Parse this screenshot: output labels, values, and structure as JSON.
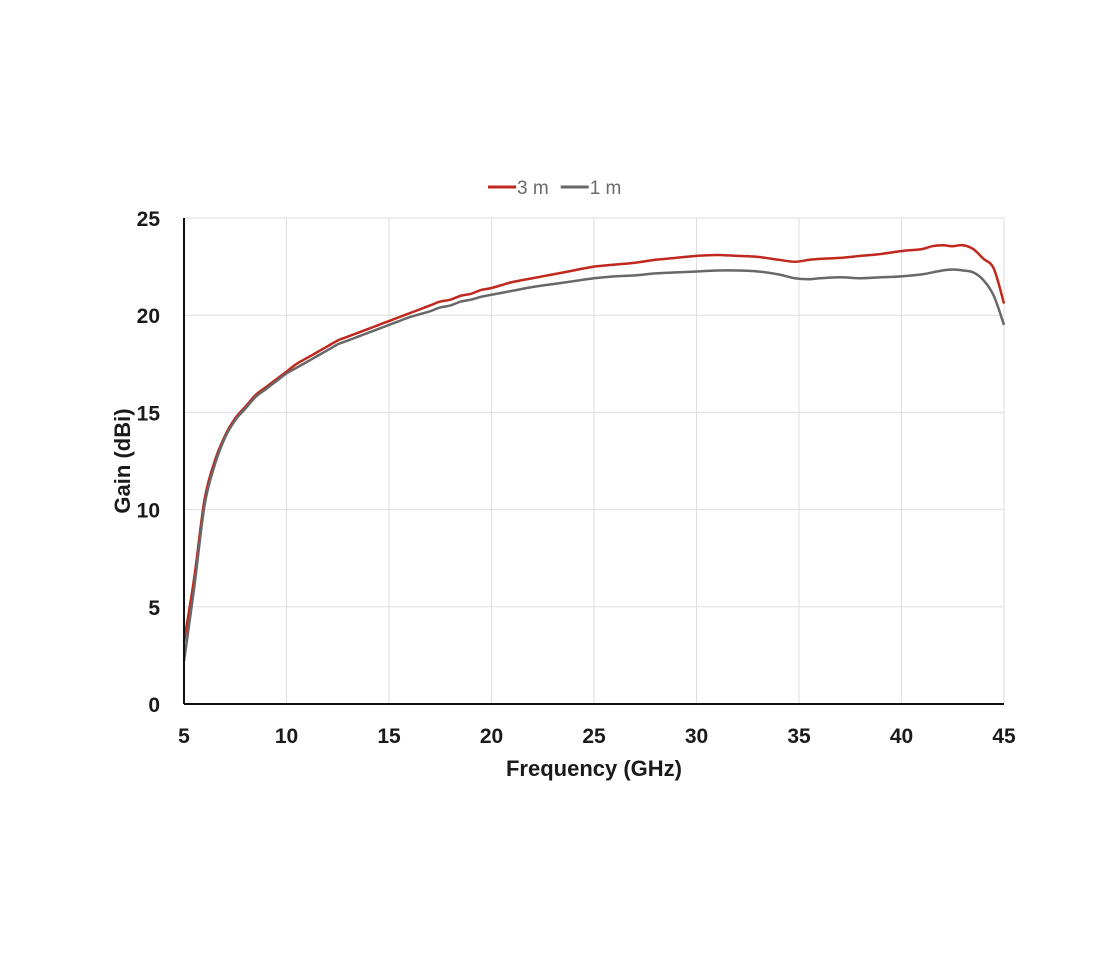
{
  "chart_data": {
    "type": "line",
    "xlabel": "Frequency  (GHz)",
    "ylabel": "Gain (dBi)",
    "xlim": [
      5,
      45
    ],
    "ylim": [
      0,
      25
    ],
    "x_ticks": [
      5,
      10,
      15,
      20,
      25,
      30,
      35,
      40,
      45
    ],
    "y_ticks": [
      0,
      5,
      10,
      15,
      20,
      25
    ],
    "grid": true,
    "legend_position": "top-center",
    "series": [
      {
        "name": "3 m",
        "color": "#c0281d",
        "x": [
          5,
          5.5,
          6,
          6.5,
          7,
          7.5,
          8,
          8.5,
          9,
          9.5,
          10,
          10.5,
          11,
          11.5,
          12,
          12.5,
          13,
          13.5,
          14,
          14.5,
          15,
          15.5,
          16,
          16.5,
          17,
          17.5,
          18,
          18.5,
          19,
          19.5,
          20,
          21,
          22,
          23,
          24,
          25,
          26,
          27,
          28,
          29,
          30,
          31,
          32,
          33,
          34,
          34.8,
          35.5,
          36,
          37,
          38,
          39,
          40,
          41,
          41.5,
          42,
          42.5,
          43,
          43.5,
          44,
          44.5,
          45
        ],
        "values": [
          3.2,
          6.5,
          10.5,
          12.5,
          13.8,
          14.7,
          15.3,
          15.9,
          16.3,
          16.7,
          17.1,
          17.5,
          17.8,
          18.1,
          18.4,
          18.7,
          18.9,
          19.1,
          19.3,
          19.5,
          19.7,
          19.9,
          20.1,
          20.3,
          20.5,
          20.7,
          20.8,
          21.0,
          21.1,
          21.3,
          21.4,
          21.7,
          21.9,
          22.1,
          22.3,
          22.5,
          22.6,
          22.7,
          22.85,
          22.95,
          23.05,
          23.1,
          23.05,
          23.0,
          22.85,
          22.75,
          22.85,
          22.9,
          22.95,
          23.05,
          23.15,
          23.3,
          23.4,
          23.55,
          23.6,
          23.55,
          23.6,
          23.4,
          22.9,
          22.4,
          20.6
        ]
      },
      {
        "name": "1 m",
        "color": "#686868",
        "x": [
          5,
          5.5,
          6,
          6.5,
          7,
          7.5,
          8,
          8.5,
          9,
          9.5,
          10,
          10.5,
          11,
          11.5,
          12,
          12.5,
          13,
          13.5,
          14,
          14.5,
          15,
          15.5,
          16,
          16.5,
          17,
          17.5,
          18,
          18.5,
          19,
          19.5,
          20,
          21,
          22,
          23,
          24,
          25,
          26,
          27,
          28,
          29,
          30,
          31,
          32,
          33,
          34,
          34.8,
          35.5,
          36,
          37,
          38,
          39,
          40,
          41,
          41.5,
          42,
          42.5,
          43,
          43.5,
          44,
          44.5,
          45
        ],
        "values": [
          2.2,
          6.0,
          10.2,
          12.3,
          13.7,
          14.6,
          15.2,
          15.8,
          16.2,
          16.6,
          17.0,
          17.3,
          17.6,
          17.9,
          18.2,
          18.5,
          18.7,
          18.9,
          19.1,
          19.3,
          19.5,
          19.7,
          19.9,
          20.05,
          20.2,
          20.4,
          20.5,
          20.7,
          20.8,
          20.95,
          21.05,
          21.25,
          21.45,
          21.6,
          21.75,
          21.9,
          22.0,
          22.05,
          22.15,
          22.2,
          22.25,
          22.3,
          22.3,
          22.25,
          22.1,
          21.9,
          21.85,
          21.9,
          21.95,
          21.9,
          21.95,
          22.0,
          22.1,
          22.2,
          22.3,
          22.35,
          22.3,
          22.2,
          21.8,
          21.0,
          19.5
        ]
      }
    ]
  }
}
